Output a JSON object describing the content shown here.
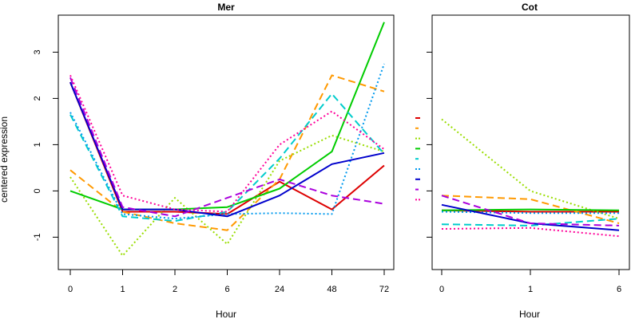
{
  "chart_data": [
    {
      "type": "line",
      "title": "Mer",
      "xlabel": "Hour",
      "ylabel": "centered expression",
      "categories": [
        "0",
        "1",
        "2",
        "6",
        "24",
        "48",
        "72"
      ],
      "ylim": [
        -1.7,
        3.8
      ],
      "yticks": [
        -1,
        0,
        1,
        2,
        3
      ],
      "grid": false,
      "series": [
        {
          "color": "#dd0000",
          "style": "solid",
          "values": [
            2.35,
            -0.45,
            -0.45,
            -0.5,
            0.2,
            -0.4,
            0.55
          ]
        },
        {
          "color": "#ff9900",
          "style": "dashed",
          "values": [
            0.45,
            -0.45,
            -0.7,
            -0.85,
            0.25,
            2.5,
            2.15
          ]
        },
        {
          "color": "#99dd00",
          "style": "dotted",
          "values": [
            0.3,
            -1.4,
            -0.15,
            -1.15,
            0.65,
            1.2,
            0.85
          ]
        },
        {
          "color": "#00cc00",
          "style": "solid",
          "values": [
            0.0,
            -0.4,
            -0.4,
            -0.35,
            0.05,
            0.85,
            3.65
          ]
        },
        {
          "color": "#00cccc",
          "style": "dashed",
          "values": [
            1.65,
            -0.55,
            -0.65,
            -0.45,
            0.7,
            2.1,
            0.8
          ]
        },
        {
          "color": "#0099ee",
          "style": "dotted",
          "values": [
            1.7,
            -0.5,
            -0.6,
            -0.5,
            -0.48,
            -0.5,
            2.75
          ]
        },
        {
          "color": "#0000cc",
          "style": "solid",
          "values": [
            2.35,
            -0.4,
            -0.4,
            -0.55,
            -0.1,
            0.58,
            0.82
          ]
        },
        {
          "color": "#aa00dd",
          "style": "dashed",
          "values": [
            2.45,
            -0.35,
            -0.55,
            -0.15,
            0.25,
            -0.1,
            -0.28
          ]
        },
        {
          "color": "#ff0099",
          "style": "dotted",
          "values": [
            2.5,
            -0.1,
            -0.4,
            -0.45,
            1.0,
            1.72,
            0.9
          ]
        }
      ]
    },
    {
      "type": "line",
      "title": "Cot",
      "xlabel": "Hour",
      "categories": [
        "0",
        "1",
        "6"
      ],
      "ylim": [
        -1.7,
        3.8
      ],
      "grid": false,
      "series": [
        {
          "color": "#dd0000",
          "style": "solid",
          "values": [
            -0.42,
            -0.45,
            -0.45
          ]
        },
        {
          "color": "#ff9900",
          "style": "dashed",
          "values": [
            -0.1,
            -0.18,
            -0.7
          ]
        },
        {
          "color": "#99dd00",
          "style": "dotted",
          "values": [
            1.55,
            0.0,
            -0.6
          ]
        },
        {
          "color": "#00cc00",
          "style": "solid",
          "values": [
            -0.42,
            -0.4,
            -0.42
          ]
        },
        {
          "color": "#00cccc",
          "style": "dashed",
          "values": [
            -0.72,
            -0.75,
            -0.6
          ]
        },
        {
          "color": "#0099ee",
          "style": "dotted",
          "values": [
            -0.45,
            -0.48,
            -0.48
          ]
        },
        {
          "color": "#0000cc",
          "style": "solid",
          "values": [
            -0.3,
            -0.7,
            -0.85
          ]
        },
        {
          "color": "#aa00dd",
          "style": "dashed",
          "values": [
            -0.1,
            -0.7,
            -0.75
          ]
        },
        {
          "color": "#ff0099",
          "style": "dotted",
          "values": [
            -0.82,
            -0.8,
            -0.98
          ]
        }
      ]
    }
  ]
}
